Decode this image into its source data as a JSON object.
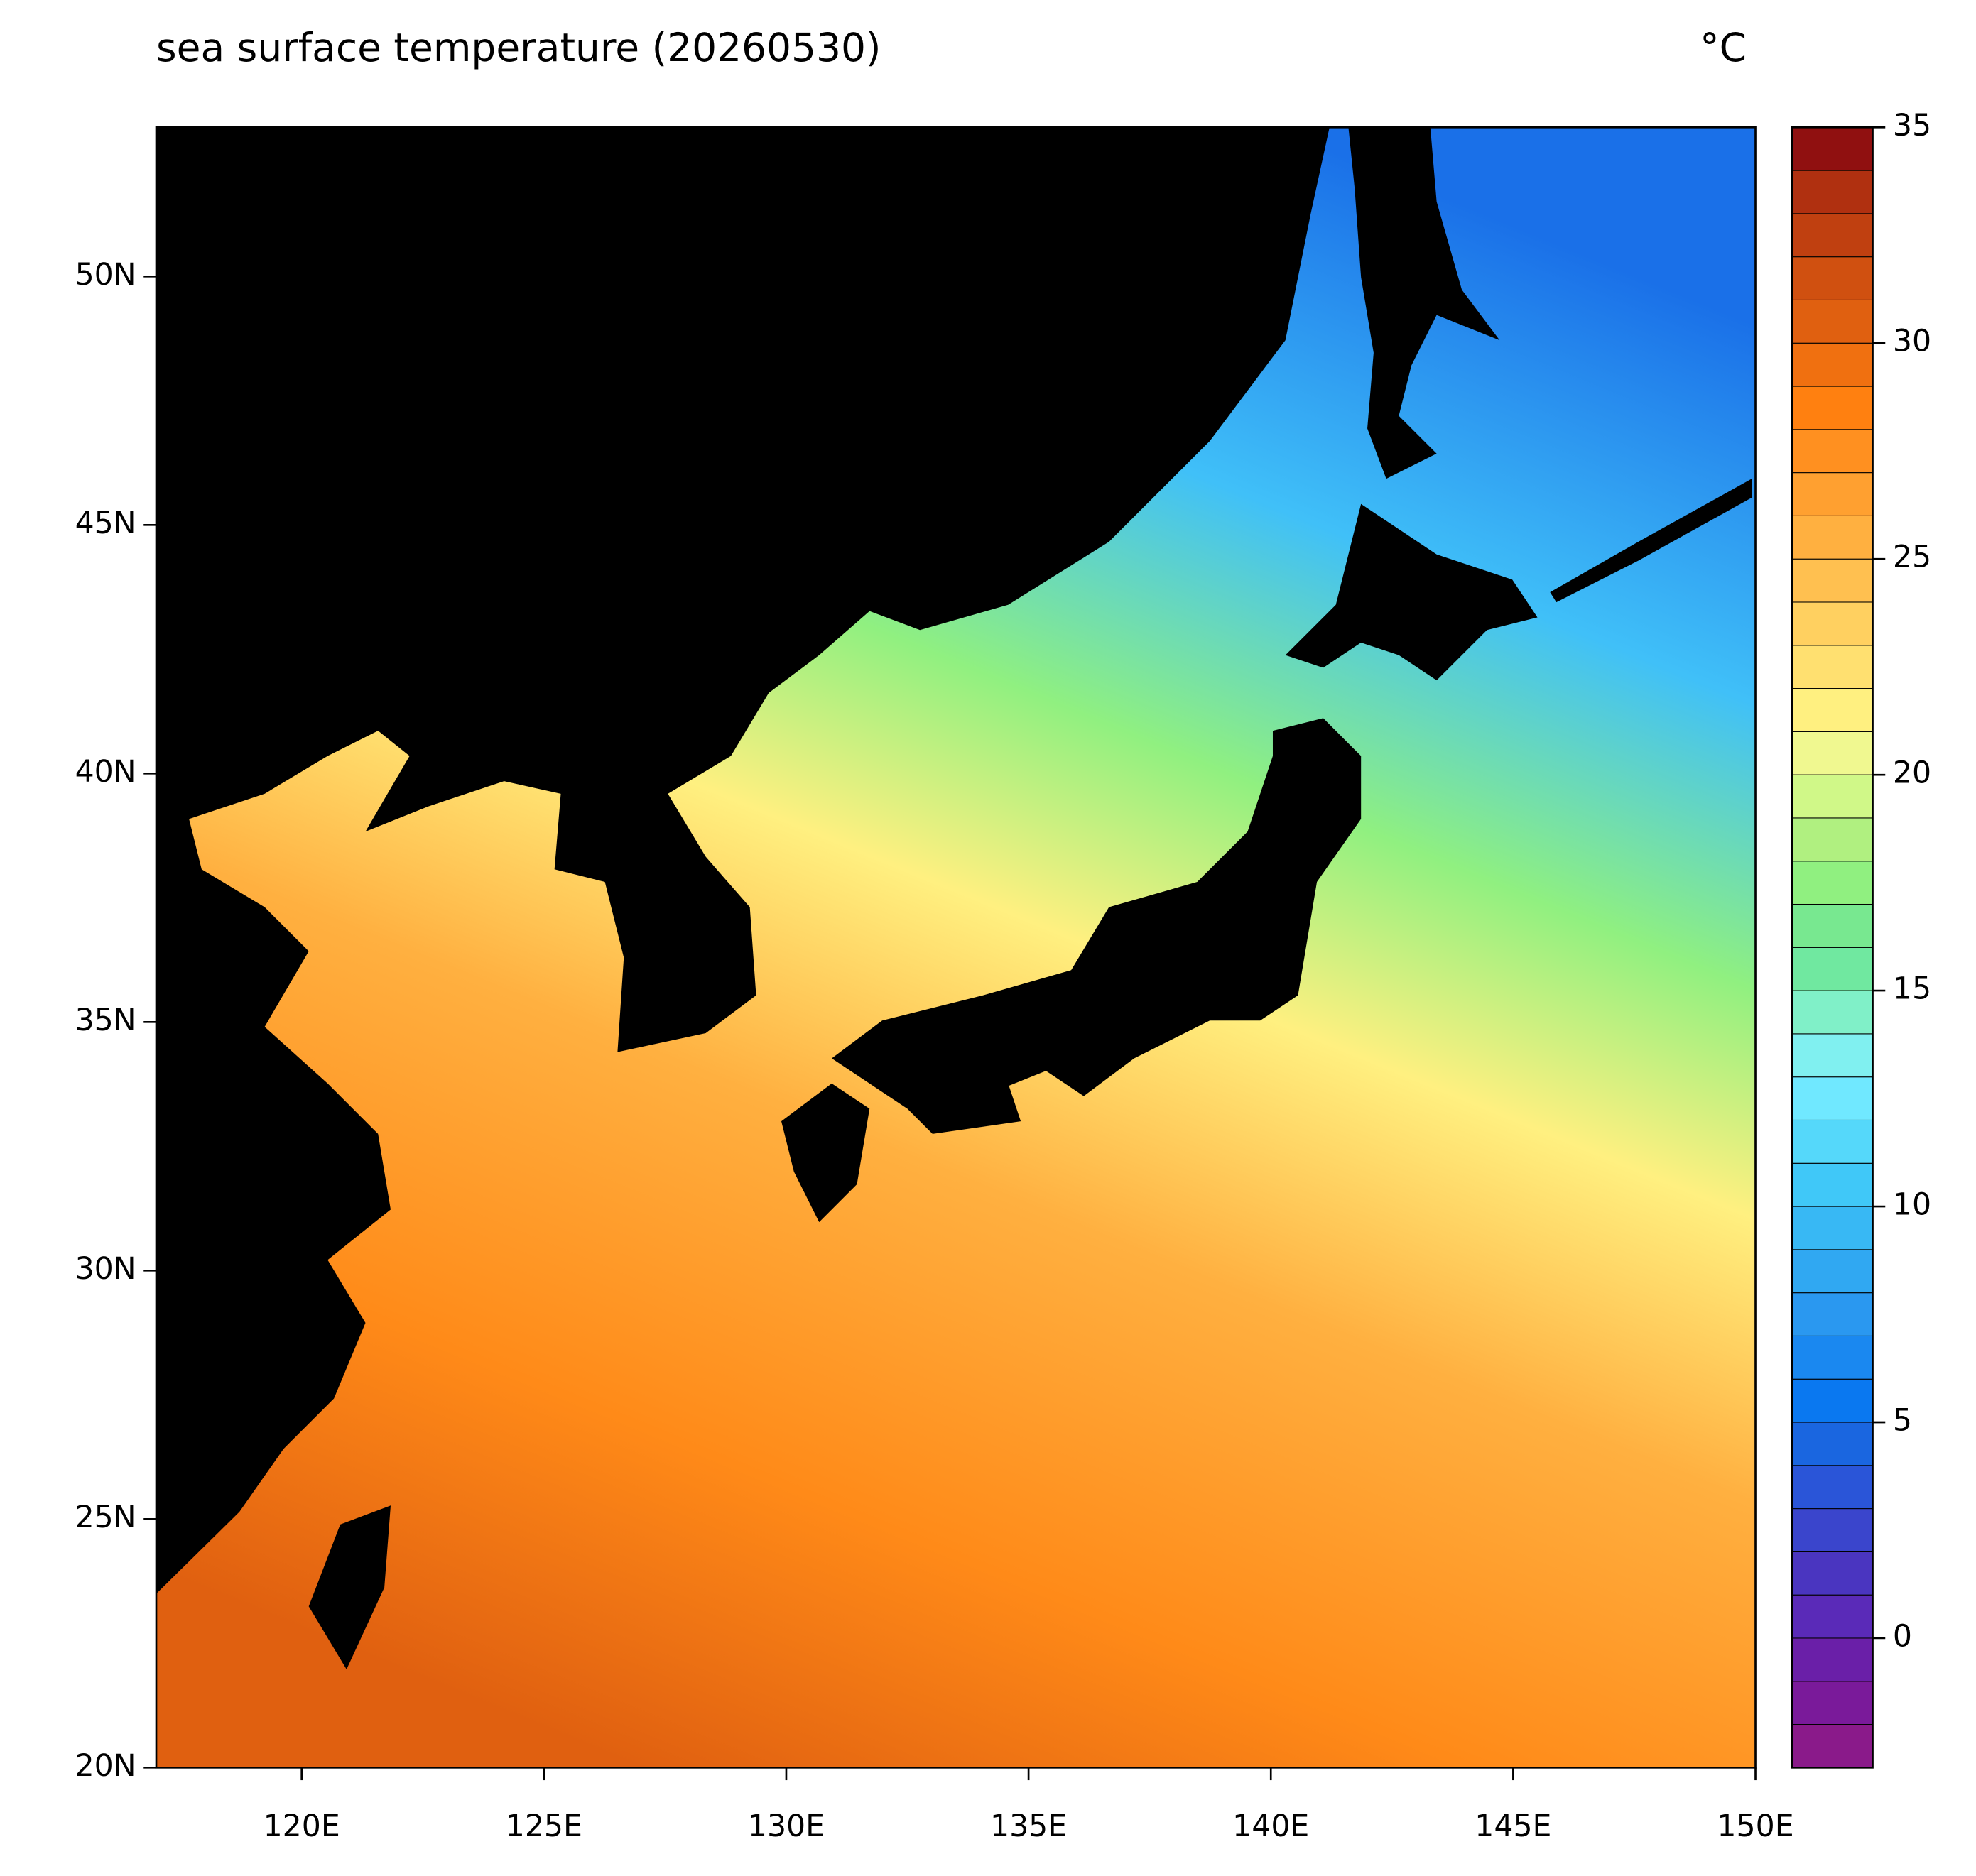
{
  "chart_data": {
    "type": "map",
    "title": "sea surface temperature (20260530)",
    "unit": "°C",
    "xlim": [
      117,
      150
    ],
    "ylim": [
      20,
      53
    ],
    "xticks": [
      {
        "value": 120,
        "label": "120E"
      },
      {
        "value": 125,
        "label": "125E"
      },
      {
        "value": 130,
        "label": "130E"
      },
      {
        "value": 135,
        "label": "135E"
      },
      {
        "value": 140,
        "label": "140E"
      },
      {
        "value": 145,
        "label": "145E"
      },
      {
        "value": 150,
        "label": "150E"
      }
    ],
    "yticks": [
      {
        "value": 20,
        "label": "20N"
      },
      {
        "value": 25,
        "label": "25N"
      },
      {
        "value": 30,
        "label": "30N"
      },
      {
        "value": 35,
        "label": "35N"
      },
      {
        "value": 40,
        "label": "40N"
      },
      {
        "value": 45,
        "label": "45N"
      },
      {
        "value": 50,
        "label": "50N"
      }
    ],
    "colorbar": {
      "lim": [
        -3,
        35
      ],
      "ticks": [
        0,
        5,
        10,
        15,
        20,
        25,
        30,
        35
      ],
      "levels": [
        -3,
        -2,
        -1,
        0,
        1,
        2,
        3,
        4,
        5,
        6,
        7,
        8,
        9,
        10,
        11,
        12,
        13,
        14,
        15,
        16,
        17,
        18,
        19,
        20,
        21,
        22,
        23,
        24,
        25,
        26,
        27,
        28,
        29,
        30,
        31,
        32,
        33,
        34,
        35
      ],
      "colors": [
        "#8a1a8a",
        "#7a1a9a",
        "#6a1fa8",
        "#5a2ab8",
        "#4a35c0",
        "#3a45cc",
        "#2a55d8",
        "#1a66e0",
        "#0a78f0",
        "#1a88f0",
        "#2a98f0",
        "#30a8f2",
        "#38b8f4",
        "#40c8f8",
        "#55d8fa",
        "#70e8ff",
        "#80f0f0",
        "#80f0c8",
        "#70e8a0",
        "#78e890",
        "#90f080",
        "#b0f080",
        "#d0f888",
        "#f0f890",
        "#fff080",
        "#ffe070",
        "#ffd060",
        "#ffc050",
        "#ffb040",
        "#ffa030",
        "#ff9020",
        "#ff8010",
        "#f07010",
        "#e06010",
        "#d05010",
        "#c04010",
        "#b03010",
        "#901010"
      ]
    }
  }
}
